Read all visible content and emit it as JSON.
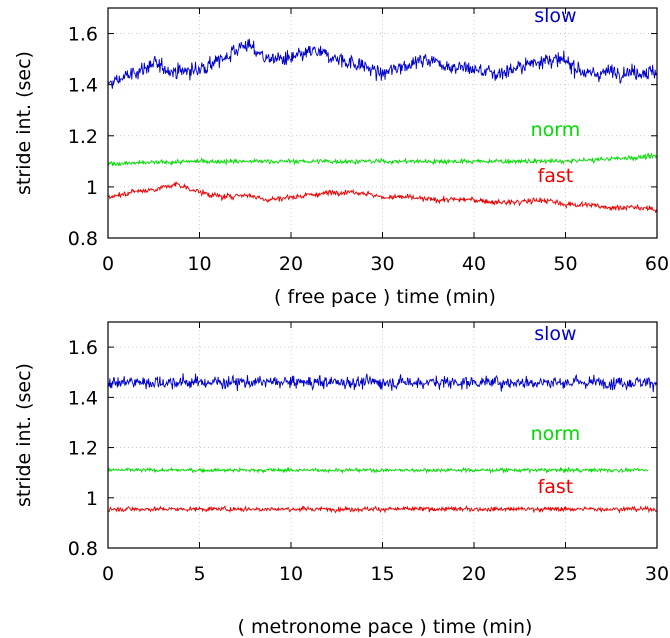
{
  "chart_data": [
    {
      "type": "line",
      "panel": "free pace",
      "xlabel": "( free pace )     time   (min)",
      "ylabel": "stride int.  (sec)",
      "xlim": [
        0,
        60
      ],
      "ylim": [
        0.8,
        1.7
      ],
      "xticks": [
        "0",
        "10",
        "20",
        "30",
        "40",
        "50",
        "60"
      ],
      "yticks": [
        "0.8",
        "1",
        "1.2",
        "1.4",
        "1.6"
      ],
      "grid": true,
      "series": [
        {
          "name": "slow",
          "color": "#0000cc",
          "x": [
            0,
            2.5,
            5,
            7.5,
            10,
            12.5,
            15,
            17.5,
            20,
            22.5,
            25,
            27.5,
            30,
            32.5,
            35,
            37.5,
            40,
            42.5,
            45,
            47.5,
            50,
            52.5,
            55,
            57.5,
            60
          ],
          "y": [
            1.4,
            1.44,
            1.48,
            1.45,
            1.46,
            1.5,
            1.56,
            1.5,
            1.5,
            1.53,
            1.5,
            1.48,
            1.44,
            1.48,
            1.5,
            1.47,
            1.46,
            1.44,
            1.47,
            1.5,
            1.49,
            1.44,
            1.45,
            1.45,
            1.45
          ],
          "noise": 0.04
        },
        {
          "name": "norm",
          "color": "#00dd00",
          "x": [
            0,
            10,
            20,
            30,
            40,
            50,
            60
          ],
          "y": [
            1.09,
            1.1,
            1.1,
            1.1,
            1.1,
            1.1,
            1.12
          ],
          "noise": 0.012
        },
        {
          "name": "fast",
          "color": "#ee0000",
          "x": [
            0,
            2.5,
            5,
            7.5,
            10,
            12.5,
            15,
            17.5,
            20,
            22.5,
            25,
            27.5,
            30,
            32.5,
            35,
            37.5,
            40,
            42.5,
            45,
            47.5,
            50,
            52.5,
            55,
            57.5,
            60
          ],
          "y": [
            0.96,
            0.98,
            0.99,
            1.01,
            0.98,
            0.96,
            0.97,
            0.95,
            0.96,
            0.97,
            0.98,
            0.98,
            0.96,
            0.96,
            0.95,
            0.95,
            0.95,
            0.94,
            0.94,
            0.95,
            0.93,
            0.93,
            0.92,
            0.92,
            0.91
          ],
          "noise": 0.015
        }
      ]
    },
    {
      "type": "line",
      "panel": "metronome pace",
      "xlabel": "( metronome pace )     time   (min)",
      "ylabel": "stride int.  (sec)",
      "xlim": [
        0,
        30
      ],
      "ylim": [
        0.8,
        1.7
      ],
      "xticks": [
        "0",
        "5",
        "10",
        "15",
        "20",
        "25",
        "30"
      ],
      "yticks": [
        "0.8",
        "1",
        "1.2",
        "1.4",
        "1.6"
      ],
      "grid": true,
      "series": [
        {
          "name": "slow",
          "color": "#0000cc",
          "x": [
            0,
            10,
            20,
            30
          ],
          "y": [
            1.46,
            1.46,
            1.46,
            1.46
          ],
          "noise": 0.035
        },
        {
          "name": "norm",
          "color": "#00dd00",
          "x": [
            0,
            10,
            20,
            29.5
          ],
          "y": [
            1.11,
            1.11,
            1.11,
            1.11
          ],
          "noise": 0.01
        },
        {
          "name": "fast",
          "color": "#ee0000",
          "x": [
            0,
            10,
            20,
            30
          ],
          "y": [
            0.955,
            0.955,
            0.955,
            0.955
          ],
          "noise": 0.012
        }
      ]
    }
  ]
}
